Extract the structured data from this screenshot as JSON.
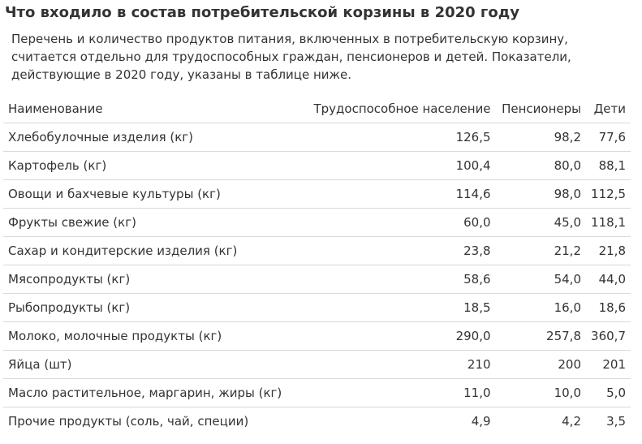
{
  "title": "Что входило в состав потребительской корзины в 2020 году",
  "intro": "Перечень и количество продуктов питания, включенных в потребительскую корзину, считается отдельно для трудоспособных граждан, пенсионеров и детей. Показатели, действующие в 2020 году, указаны в таблице ниже.",
  "table": {
    "headers": {
      "name": "Наименование",
      "working": "Трудоспособное население",
      "pensioners": "Пенсионеры",
      "children": "Дети"
    },
    "rows": [
      {
        "name": "Хлебобулочные изделия (кг)",
        "working": "126,5",
        "pensioners": "98,2",
        "children": "77,6"
      },
      {
        "name": "Картофель (кг)",
        "working": "100,4",
        "pensioners": "80,0",
        "children": "88,1"
      },
      {
        "name": "Овощи и бахчевые культуры (кг)",
        "working": "114,6",
        "pensioners": "98,0",
        "children": "112,5"
      },
      {
        "name": "Фрукты свежие (кг)",
        "working": "60,0",
        "pensioners": "45,0",
        "children": "118,1"
      },
      {
        "name": "Сахар и кондитерские изделия (кг)",
        "working": "23,8",
        "pensioners": "21,2",
        "children": "21,8"
      },
      {
        "name": "Мясопродукты (кг)",
        "working": "58,6",
        "pensioners": "54,0",
        "children": "44,0"
      },
      {
        "name": "Рыбопродукты (кг)",
        "working": "18,5",
        "pensioners": "16,0",
        "children": "18,6"
      },
      {
        "name": "Молоко, молочные продукты (кг)",
        "working": "290,0",
        "pensioners": "257,8",
        "children": "360,7"
      },
      {
        "name": "Яйца (шт)",
        "working": "210",
        "pensioners": "200",
        "children": "201"
      },
      {
        "name": "Масло растительное, маргарин, жиры (кг)",
        "working": "11,0",
        "pensioners": "10,0",
        "children": "5,0"
      },
      {
        "name": "Прочие продукты (соль, чай, специи)",
        "working": "4,9",
        "pensioners": "4,2",
        "children": "3,5"
      }
    ]
  }
}
